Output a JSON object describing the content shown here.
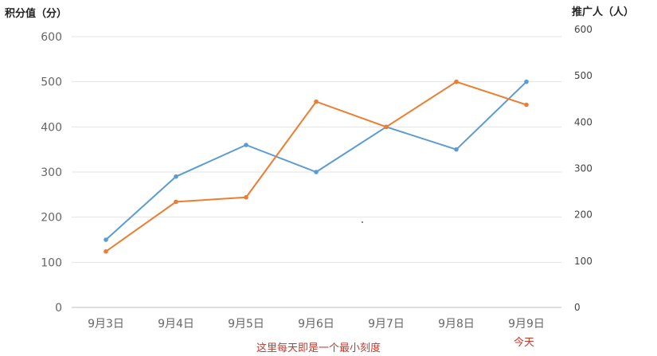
{
  "chart_data": {
    "type": "line",
    "categories": [
      "9月3日",
      "9月4日",
      "9月5日",
      "9月6日",
      "9月7日",
      "9月8日",
      "9月9日"
    ],
    "left_axis": {
      "title": "积分值（分）",
      "ylim": [
        0,
        600
      ],
      "ticks": [
        "0",
        "100",
        "200",
        "300",
        "400",
        "500",
        "600"
      ]
    },
    "right_axis": {
      "title": "推广人（人）",
      "ylim": [
        0,
        600
      ],
      "ticks": [
        "0",
        "100",
        "200",
        "300",
        "400",
        "500",
        "600"
      ]
    },
    "series": [
      {
        "color": "#5b9bd5",
        "axis": "left",
        "values": [
          150,
          290,
          360,
          300,
          400,
          350,
          500
        ]
      },
      {
        "color": "#ed7d31",
        "axis": "left",
        "values": [
          124,
          234,
          244,
          456,
          400,
          500,
          449
        ]
      }
    ],
    "grid": true,
    "legend": "none"
  },
  "annotations": {
    "scale_note": "这里每天即是一个最小刻度",
    "today_note": "今天"
  }
}
